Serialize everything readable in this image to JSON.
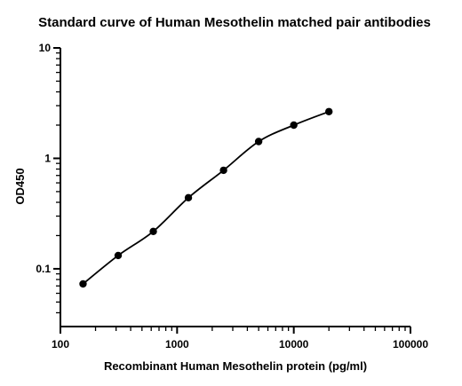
{
  "chart_data": {
    "type": "scatter",
    "title": "Standard curve of Human Mesothelin matched pair antibodies",
    "xlabel": "Recombinant Human Mesothelin protein (pg/ml)",
    "ylabel": "OD450",
    "x_scale": "log",
    "y_scale": "log",
    "xlim": [
      100,
      100000
    ],
    "ylim": [
      0.03,
      10
    ],
    "x_ticks": [
      100,
      1000,
      10000,
      100000
    ],
    "x_tick_labels": [
      "100",
      "1000",
      "10000",
      "100000"
    ],
    "y_ticks": [
      0.1,
      1,
      10
    ],
    "y_tick_labels": [
      "0.1",
      "1",
      "10"
    ],
    "grid": false,
    "series": [
      {
        "x": [
          156.25,
          312.5,
          625,
          1250,
          2500,
          5000,
          10000,
          20000
        ],
        "y": [
          0.073,
          0.132,
          0.218,
          0.44,
          0.78,
          1.42,
          2.0,
          2.65
        ],
        "fit_curve": true
      }
    ]
  }
}
